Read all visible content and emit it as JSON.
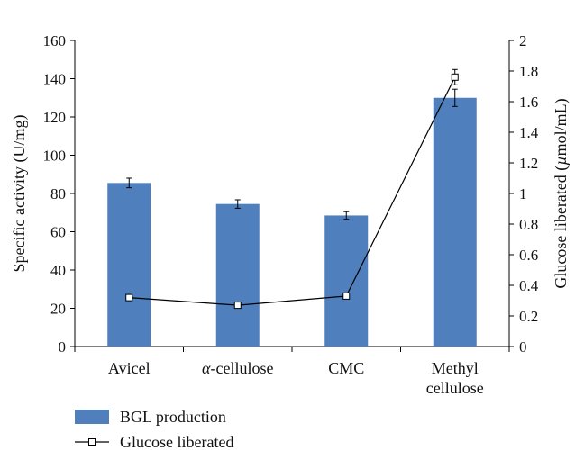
{
  "chart_data": {
    "type": "bar",
    "categories": [
      "Avicel",
      "α-cellulose",
      "CMC",
      "Methyl\ncellulose"
    ],
    "series": [
      {
        "name": "BGL production",
        "type": "bar",
        "axis": "left",
        "values": [
          85.5,
          74.5,
          68.5,
          130
        ],
        "errors": [
          2.5,
          2.2,
          2.0,
          4.5
        ],
        "color": "#4f7fbd"
      },
      {
        "name": "Glucose liberated",
        "type": "line",
        "axis": "right",
        "values": [
          0.32,
          0.27,
          0.33,
          1.76
        ],
        "errors": [
          0,
          0,
          0,
          0.05
        ],
        "color": "#000000",
        "marker": "open-square"
      }
    ],
    "y_left": {
      "label": "Specific activity (U/mg)",
      "ylim": [
        0,
        160
      ],
      "ticks": [
        0,
        20,
        40,
        60,
        80,
        100,
        120,
        140,
        160
      ]
    },
    "y_right": {
      "label": "Glucose liberated (µmol/mL)",
      "ylim": [
        0,
        2
      ],
      "ticks": [
        "0",
        "0.2",
        "0.4",
        "0.6",
        "0.8",
        "1",
        "1.2",
        "1.4",
        "1.6",
        "1.8",
        "2"
      ]
    },
    "xlabel": "",
    "title": "",
    "grid": false,
    "legend_position": "bottom-left"
  }
}
